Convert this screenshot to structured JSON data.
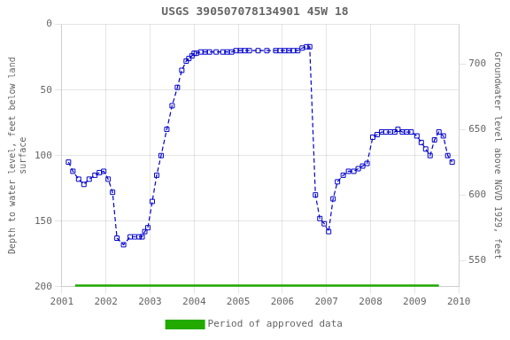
{
  "chart_data": {
    "type": "line",
    "title": "USGS 390507078134901 45W 18",
    "y_label": "Depth to water level, feet below land\nsurface",
    "y2_label": "Groundwater level above NGVD 1929, feet",
    "xlim": [
      2001,
      2010
    ],
    "xticks": [
      2001,
      2002,
      2003,
      2004,
      2005,
      2006,
      2007,
      2008,
      2009,
      2010
    ],
    "ylim": [
      200,
      0
    ],
    "yticks": [
      0,
      50,
      100,
      150,
      200
    ],
    "y2lim": [
      530,
      730
    ],
    "y2ticks": [
      550,
      600,
      650,
      700
    ],
    "grid": true,
    "legend": "bottom",
    "series": [
      {
        "color": "#0000cc",
        "marker": "square",
        "line_style": "dashed",
        "x": [
          2001.15,
          2001.25,
          2001.38,
          2001.5,
          2001.62,
          2001.75,
          2001.85,
          2001.95,
          2002.05,
          2002.15,
          2002.25,
          2002.4,
          2002.55,
          2002.65,
          2002.75,
          2002.82,
          2002.88,
          2002.95,
          2003.05,
          2003.15,
          2003.25,
          2003.38,
          2003.5,
          2003.62,
          2003.72,
          2003.82,
          2003.88,
          2003.95,
          2004.0,
          2004.05,
          2004.15,
          2004.25,
          2004.35,
          2004.5,
          2004.65,
          2004.75,
          2004.85,
          2004.95,
          2005.05,
          2005.15,
          2005.25,
          2005.45,
          2005.65,
          2005.85,
          2005.95,
          2006.05,
          2006.15,
          2006.25,
          2006.35,
          2006.45,
          2006.55,
          2006.62,
          2006.75,
          2006.85,
          2006.95,
          2007.05,
          2007.15,
          2007.25,
          2007.38,
          2007.5,
          2007.62,
          2007.72,
          2007.82,
          2007.92,
          2008.05,
          2008.15,
          2008.25,
          2008.35,
          2008.45,
          2008.55,
          2008.62,
          2008.72,
          2008.82,
          2008.92,
          2009.05,
          2009.15,
          2009.25,
          2009.35,
          2009.45,
          2009.55,
          2009.65,
          2009.75,
          2009.85
        ],
        "values": [
          105,
          112,
          118,
          122,
          118,
          115,
          113,
          112,
          118,
          128,
          163,
          168,
          162,
          162,
          162,
          162,
          158,
          155,
          135,
          115,
          100,
          80,
          62,
          48,
          35,
          28,
          26,
          24,
          22,
          22,
          21,
          21,
          21,
          21,
          21,
          21,
          21,
          20,
          20,
          20,
          20,
          20,
          20,
          20,
          20,
          20,
          20,
          20,
          20,
          18,
          17,
          17,
          130,
          148,
          152,
          158,
          133,
          120,
          115,
          112,
          112,
          110,
          108,
          106,
          86,
          84,
          82,
          82,
          82,
          82,
          80,
          82,
          82,
          82,
          85,
          90,
          95,
          100,
          88,
          82,
          85,
          100,
          105
        ]
      },
      {
        "name": "Period of approved data",
        "color": "#22aa00",
        "marker": "none",
        "line_style": "solid",
        "x": [
          2001.3,
          2009.55
        ],
        "values": [
          200,
          200
        ]
      }
    ]
  }
}
